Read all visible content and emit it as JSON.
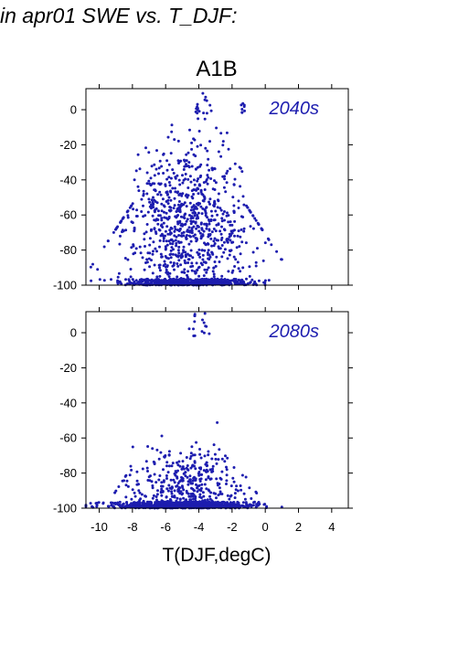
{
  "header": "in apr01 SWE vs. T_DJF:",
  "title": "A1B",
  "xlabel": "T(DJF,degC)",
  "colors": {
    "points": "#1d1daf",
    "label": "#1d1daf",
    "axis": "#000000"
  },
  "chart_data": [
    {
      "type": "scatter",
      "annotation": "2040s",
      "xlim": [
        -10.8,
        5
      ],
      "ylim": [
        -100,
        12
      ],
      "yticks": [
        0,
        -20,
        -40,
        -60,
        -80,
        -100
      ],
      "xticks": [
        -10,
        -8,
        -6,
        -4,
        -2,
        0,
        2,
        4
      ],
      "x_tick_labels_shown": false,
      "distribution": {
        "n_points": 1400,
        "x_center": -4.6,
        "x_spread": 1.9,
        "x_range": [
          -10.5,
          1
        ],
        "floor_fraction": 0.35,
        "floor_value": -100,
        "y_mode": -65,
        "y_spread": 22,
        "tail_above_0_at_x": [
          -4,
          -3.5,
          -1.3
        ]
      }
    },
    {
      "type": "scatter",
      "annotation": "2080s",
      "xlim": [
        -10.8,
        5
      ],
      "ylim": [
        -100,
        12
      ],
      "yticks": [
        0,
        -20,
        -40,
        -60,
        -80,
        -100
      ],
      "xticks": [
        -10,
        -8,
        -6,
        -4,
        -2,
        0,
        2,
        4
      ],
      "x_tick_labels_shown": true,
      "distribution": {
        "n_points": 1400,
        "x_center": -4.8,
        "x_spread": 1.9,
        "x_range": [
          -10.8,
          1
        ],
        "floor_fraction": 0.65,
        "floor_value": -100,
        "y_mode": -90,
        "y_spread": 12,
        "tail_above_0_at_x": [
          -4.3,
          -3.7
        ]
      }
    }
  ]
}
